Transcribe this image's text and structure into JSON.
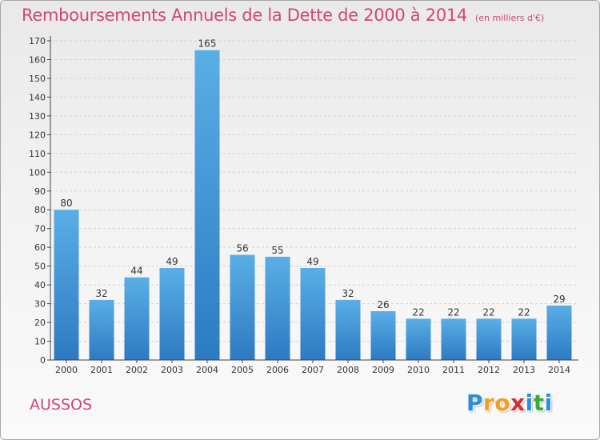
{
  "header": {
    "title": "Remboursements Annuels de la Dette de 2000 à 2014",
    "subtitle": "(en milliers d'€)"
  },
  "footer": {
    "commune": "AUSSOS",
    "logo_letters": [
      "P",
      "r",
      "o",
      "x",
      "i",
      "t",
      "i"
    ],
    "logo_colors": [
      "#2a8fd8",
      "#f0a020",
      "#f0a020",
      "#d03030",
      "#2a8fd8",
      "#3aa83a",
      "#2a8fd8"
    ]
  },
  "colors": {
    "title": "#d2457a",
    "bar_light": "#5aaee6",
    "bar_dark": "#2d7ac2",
    "grid": "#cfcfcf",
    "axis": "#444444"
  },
  "chart_data": {
    "type": "bar",
    "title": "Remboursements Annuels de la Dette de 2000 à 2014",
    "subtitle": "(en milliers d'€)",
    "xlabel": "",
    "ylabel": "",
    "categories": [
      "2000",
      "2001",
      "2002",
      "2003",
      "2004",
      "2005",
      "2006",
      "2007",
      "2008",
      "2009",
      "2010",
      "2011",
      "2012",
      "2013",
      "2014"
    ],
    "values": [
      80,
      32,
      44,
      49,
      165,
      56,
      55,
      49,
      32,
      26,
      22,
      22,
      22,
      22,
      29
    ],
    "ylim": [
      0,
      170
    ],
    "yticks": [
      0,
      10,
      20,
      30,
      40,
      50,
      60,
      70,
      80,
      90,
      100,
      110,
      120,
      130,
      140,
      150,
      160,
      170
    ],
    "grid": true,
    "data_labels": true
  }
}
